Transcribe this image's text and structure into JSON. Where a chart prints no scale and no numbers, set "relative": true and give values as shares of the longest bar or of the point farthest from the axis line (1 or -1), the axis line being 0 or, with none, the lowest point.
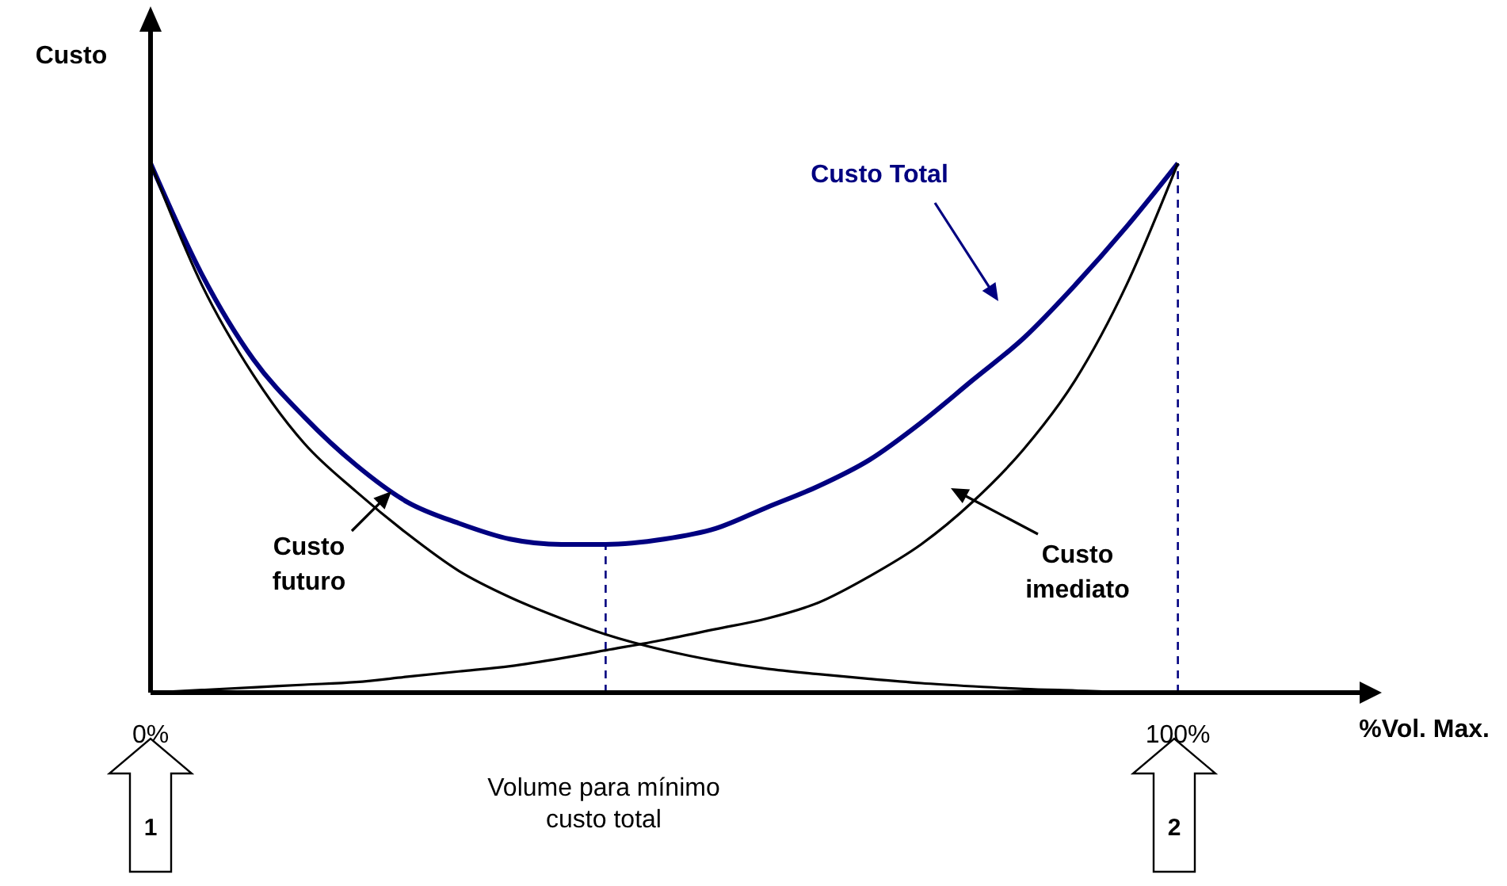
{
  "chart_data": {
    "type": "line",
    "relative": true,
    "xlabel": "%Vol. Max.",
    "ylabel": "Custo",
    "x": [
      0,
      5,
      10,
      15,
      20,
      25,
      30,
      35,
      40,
      44.3,
      50,
      55,
      60,
      65,
      70,
      75,
      80,
      85,
      90,
      95,
      100
    ],
    "xlim": [
      0,
      118
    ],
    "xticks": [
      {
        "value": 0,
        "label": "0%"
      },
      {
        "value": 100,
        "label": "100%"
      }
    ],
    "tick_labels": "x",
    "grid": false,
    "marker": "none",
    "line_style": "solid",
    "series": [
      {
        "name": "Custo Total",
        "color": "#000080",
        "values": [
          1,
          0.79,
          0.63,
          0.52,
          0.43,
          0.36,
          0.32,
          0.29,
          0.28,
          0.28,
          0.29,
          0.31,
          0.35,
          0.39,
          0.44,
          0.51,
          0.59,
          0.67,
          0.77,
          0.88,
          1
        ]
      },
      {
        "name": "Custo futuro",
        "color": "#000000",
        "values": [
          1,
          0.77,
          0.6,
          0.47,
          0.38,
          0.3,
          0.23,
          0.18,
          0.14,
          0.11,
          0.08,
          0.06,
          0.045,
          0.035,
          0.026,
          0.018,
          0.012,
          0.007,
          0.004,
          0.001,
          0
        ]
      },
      {
        "name": "Custo imediato",
        "color": "#000000",
        "values": [
          0,
          0.005,
          0.01,
          0.015,
          0.02,
          0.03,
          0.04,
          0.05,
          0.065,
          0.08,
          0.1,
          0.12,
          0.14,
          0.17,
          0.22,
          0.28,
          0.36,
          0.46,
          0.59,
          0.77,
          1
        ]
      }
    ],
    "ref_lines": [
      {
        "axis": "x",
        "value": 44.3,
        "label": null,
        "color": "#000080",
        "line_style": "dashed"
      },
      {
        "axis": "x",
        "value": 100,
        "label": null,
        "color": "#000080",
        "line_style": "dashed"
      }
    ],
    "annotations": [
      "Volume para mínimo custo total",
      "1",
      "2"
    ]
  }
}
